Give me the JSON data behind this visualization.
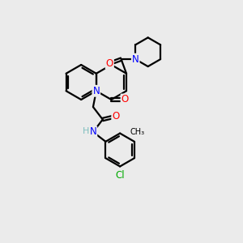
{
  "bg_color": "#ebebeb",
  "bond_color": "#000000",
  "bond_lw": 1.6,
  "atom_colors": {
    "N": "#0000ff",
    "O": "#ff0000",
    "Cl": "#00aa00",
    "NH": "#7fbfbf",
    "C": "#000000"
  },
  "font_size": 8.5,
  "fig_size": [
    3.0,
    3.0
  ],
  "dpi": 100,
  "xlim": [
    0.0,
    7.5
  ],
  "ylim": [
    -3.8,
    6.5
  ]
}
